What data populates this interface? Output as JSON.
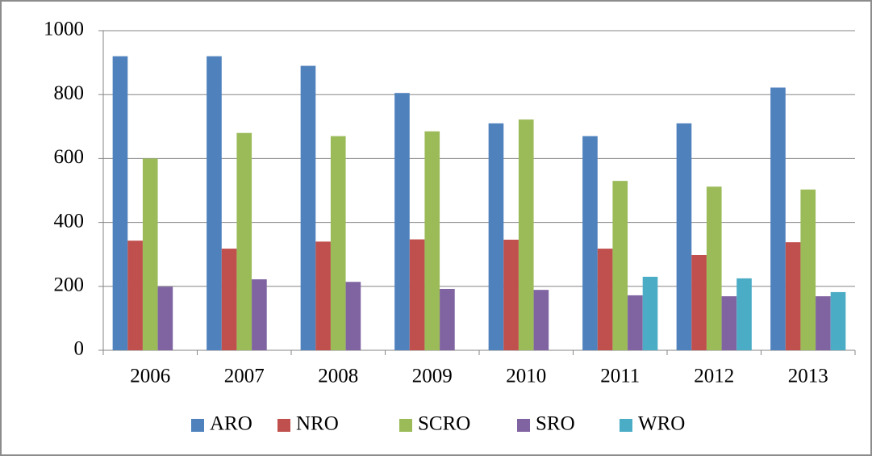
{
  "chart_data": {
    "type": "bar",
    "categories": [
      "2006",
      "2007",
      "2008",
      "2009",
      "2010",
      "2011",
      "2012",
      "2013"
    ],
    "series": [
      {
        "name": "ARO",
        "color": "#4f81bd",
        "values": [
          920,
          920,
          890,
          805,
          710,
          670,
          710,
          822
        ]
      },
      {
        "name": "NRO",
        "color": "#c0504d",
        "values": [
          343,
          318,
          340,
          347,
          346,
          318,
          298,
          338
        ]
      },
      {
        "name": "SCRO",
        "color": "#9bbb59",
        "values": [
          600,
          680,
          670,
          685,
          722,
          530,
          512,
          503
        ]
      },
      {
        "name": "SRO",
        "color": "#8064a2",
        "values": [
          199,
          222,
          214,
          192,
          189,
          172,
          169,
          169
        ]
      },
      {
        "name": "WRO",
        "color": "#4bacc6",
        "values": [
          null,
          null,
          null,
          null,
          null,
          230,
          225,
          182
        ]
      }
    ],
    "ylim": [
      0,
      1000
    ],
    "yticks": [
      0,
      200,
      400,
      600,
      800,
      1000
    ],
    "grid": true,
    "legend": "bottom"
  }
}
